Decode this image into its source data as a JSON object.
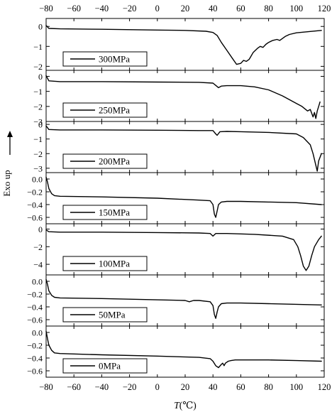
{
  "chart_data": {
    "type": "line",
    "x_axis": {
      "label": "T(℃)",
      "range": [
        -80,
        120
      ],
      "ticks": [
        -80,
        -60,
        -40,
        -20,
        0,
        20,
        40,
        60,
        80,
        100,
        120
      ],
      "tick_labels": [
        "−80",
        "−60",
        "−40",
        "−20",
        "0",
        "20",
        "40",
        "60",
        "80",
        "100",
        "120"
      ],
      "top_tick_labels": [
        "−80",
        "−60",
        "−40",
        "−20",
        "0",
        "20",
        "40",
        "60",
        "80",
        "100",
        "120"
      ]
    },
    "y_axis_label": "Exo up",
    "panels": [
      {
        "name": "300MPa",
        "legend_label": "300MPa",
        "ylim": [
          -2.2,
          0.4
        ],
        "yticks": [
          0,
          -1,
          -2
        ],
        "ytick_labels": [
          "0",
          "−1",
          "−2"
        ],
        "x": [
          -80,
          -78,
          -70,
          -40,
          0,
          20,
          35,
          40,
          43,
          46,
          50,
          54,
          57,
          60,
          62,
          64,
          66,
          69,
          72,
          74,
          76,
          78,
          80,
          83,
          86,
          88,
          92,
          95,
          100,
          110,
          118
        ],
        "y": [
          0.05,
          -0.1,
          -0.12,
          -0.14,
          -0.18,
          -0.2,
          -0.24,
          -0.3,
          -0.45,
          -0.8,
          -1.2,
          -1.6,
          -1.9,
          -1.85,
          -1.7,
          -1.75,
          -1.65,
          -1.3,
          -1.1,
          -1.0,
          -1.05,
          -0.9,
          -0.8,
          -0.7,
          -0.65,
          -0.7,
          -0.5,
          -0.4,
          -0.32,
          -0.25,
          -0.2
        ]
      },
      {
        "name": "250MPa",
        "legend_label": "250MPa",
        "ylim": [
          -3.0,
          0.4
        ],
        "yticks": [
          0,
          -1,
          -2,
          -3
        ],
        "ytick_labels": [
          "0",
          "−1",
          "−2",
          "−3"
        ],
        "x": [
          -80,
          -78,
          -70,
          -40,
          0,
          30,
          40,
          42,
          44,
          46,
          50,
          60,
          70,
          80,
          90,
          100,
          104,
          108,
          110,
          112,
          113,
          114,
          115,
          116,
          117
        ],
        "y": [
          0.05,
          -0.3,
          -0.35,
          -0.35,
          -0.38,
          -0.4,
          -0.45,
          -0.6,
          -0.75,
          -0.65,
          -0.62,
          -0.62,
          -0.7,
          -0.9,
          -1.3,
          -1.8,
          -2.0,
          -2.3,
          -2.2,
          -2.7,
          -2.4,
          -2.8,
          -2.3,
          -2.0,
          -1.7
        ]
      },
      {
        "name": "200MPa",
        "legend_label": "200MPa",
        "ylim": [
          -3.3,
          0.2
        ],
        "yticks": [
          0,
          -1,
          -2,
          -3
        ],
        "ytick_labels": [
          "0",
          "−1",
          "−2",
          "−3"
        ],
        "x": [
          -80,
          -78,
          -70,
          -40,
          0,
          30,
          40,
          42,
          43,
          45,
          50,
          60,
          80,
          100,
          105,
          110,
          112,
          114,
          115,
          116,
          118
        ],
        "y": [
          -0.1,
          -0.35,
          -0.38,
          -0.38,
          -0.4,
          -0.42,
          -0.42,
          -0.65,
          -0.75,
          -0.5,
          -0.48,
          -0.5,
          -0.55,
          -0.65,
          -0.9,
          -1.4,
          -2.0,
          -2.8,
          -3.2,
          -2.5,
          -2.0
        ]
      },
      {
        "name": "150MPa",
        "legend_label": "150MPa",
        "ylim": [
          -0.7,
          0.1
        ],
        "yticks": [
          0.0,
          -0.2,
          -0.4,
          -0.6
        ],
        "ytick_labels": [
          "0.0",
          "−0.2",
          "−0.4",
          "−0.6"
        ],
        "x": [
          -80,
          -79,
          -78,
          -76,
          -74,
          -70,
          -40,
          0,
          30,
          38,
          40,
          41,
          42,
          43,
          44,
          46,
          50,
          60,
          80,
          100,
          118
        ],
        "y": [
          0.03,
          -0.05,
          -0.15,
          -0.23,
          -0.26,
          -0.27,
          -0.28,
          -0.3,
          -0.33,
          -0.34,
          -0.4,
          -0.55,
          -0.6,
          -0.5,
          -0.4,
          -0.36,
          -0.35,
          -0.35,
          -0.36,
          -0.37,
          -0.4
        ]
      },
      {
        "name": "100MPa",
        "legend_label": "100MPa",
        "ylim": [
          -5.2,
          0.6
        ],
        "yticks": [
          0,
          -2,
          -4
        ],
        "ytick_labels": [
          "0",
          "−2",
          "−4"
        ],
        "x": [
          -80,
          -78,
          -70,
          -40,
          0,
          30,
          38,
          40,
          42,
          45,
          50,
          70,
          90,
          98,
          101,
          103,
          105,
          107,
          109,
          111,
          113,
          116,
          118
        ],
        "y": [
          -0.1,
          -0.3,
          -0.35,
          -0.35,
          -0.4,
          -0.45,
          -0.5,
          -0.8,
          -0.5,
          -0.5,
          -0.5,
          -0.6,
          -0.8,
          -1.2,
          -2.0,
          -3.0,
          -4.2,
          -4.7,
          -4.2,
          -3.0,
          -2.0,
          -1.2,
          -0.8
        ]
      },
      {
        "name": "50MPa",
        "legend_label": "50MPa",
        "ylim": [
          -0.7,
          0.1
        ],
        "yticks": [
          0.0,
          -0.2,
          -0.4,
          -0.6
        ],
        "ytick_labels": [
          "0.0",
          "−0.2",
          "−0.4",
          "−0.6"
        ],
        "x": [
          -80,
          -79,
          -78,
          -76,
          -74,
          -70,
          -40,
          0,
          20,
          23,
          26,
          30,
          38,
          40,
          41,
          42,
          43,
          44,
          46,
          50,
          60,
          80,
          100,
          118
        ],
        "y": [
          0.03,
          -0.05,
          -0.15,
          -0.22,
          -0.25,
          -0.26,
          -0.27,
          -0.29,
          -0.3,
          -0.32,
          -0.3,
          -0.3,
          -0.32,
          -0.38,
          -0.52,
          -0.58,
          -0.48,
          -0.4,
          -0.35,
          -0.34,
          -0.34,
          -0.35,
          -0.36,
          -0.37
        ]
      },
      {
        "name": "0MPa",
        "legend_label": "0MPa",
        "ylim": [
          -0.7,
          0.1
        ],
        "yticks": [
          0.0,
          -0.2,
          -0.4,
          -0.6
        ],
        "ytick_labels": [
          "0.0",
          "−0.2",
          "−0.4",
          "−0.6"
        ],
        "x": [
          -80,
          -79,
          -78,
          -76,
          -74,
          -70,
          -40,
          0,
          30,
          38,
          40,
          42,
          44,
          46,
          47,
          48,
          49,
          51,
          53,
          56,
          60,
          80,
          100,
          118
        ],
        "y": [
          0.02,
          -0.1,
          -0.2,
          -0.28,
          -0.32,
          -0.33,
          -0.35,
          -0.37,
          -0.39,
          -0.41,
          -0.45,
          -0.52,
          -0.55,
          -0.5,
          -0.48,
          -0.52,
          -0.48,
          -0.45,
          -0.44,
          -0.43,
          -0.43,
          -0.43,
          -0.44,
          -0.45
        ]
      }
    ]
  }
}
